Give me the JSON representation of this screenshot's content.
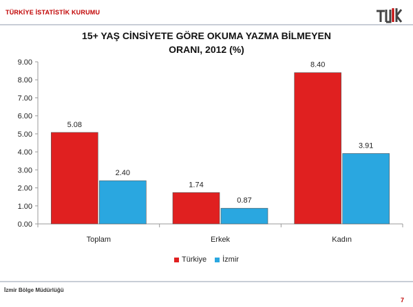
{
  "header": {
    "org_name": "TÜRKİYE İSTATİSTİK KURUMU",
    "logo_text": "TÜİK"
  },
  "chart_data": {
    "type": "bar",
    "title_line1": "15+ YAŞ CİNSİYETE GÖRE OKUMA YAZMA BİLMEYEN",
    "title_line2": "ORANI, 2012 (%)",
    "categories": [
      "Toplam",
      "Erkek",
      "Kadın"
    ],
    "series": [
      {
        "name": "Türkiye",
        "values": [
          5.08,
          1.74,
          8.4
        ],
        "color": "#e02020",
        "labels": [
          "5.08",
          "1.74",
          "8.40"
        ]
      },
      {
        "name": "İzmir",
        "values": [
          2.4,
          0.87,
          3.91
        ],
        "color": "#2aa7e0",
        "labels": [
          "2.40",
          "0.87",
          "3.91"
        ]
      }
    ],
    "ylim": [
      0,
      9
    ],
    "yticks": [
      "0.00",
      "1.00",
      "2.00",
      "3.00",
      "4.00",
      "5.00",
      "6.00",
      "7.00",
      "8.00",
      "9.00"
    ],
    "legend_position": "bottom",
    "grid": false
  },
  "footer": {
    "office": "İzmir Bölge Müdürlüğü",
    "page": "7"
  }
}
